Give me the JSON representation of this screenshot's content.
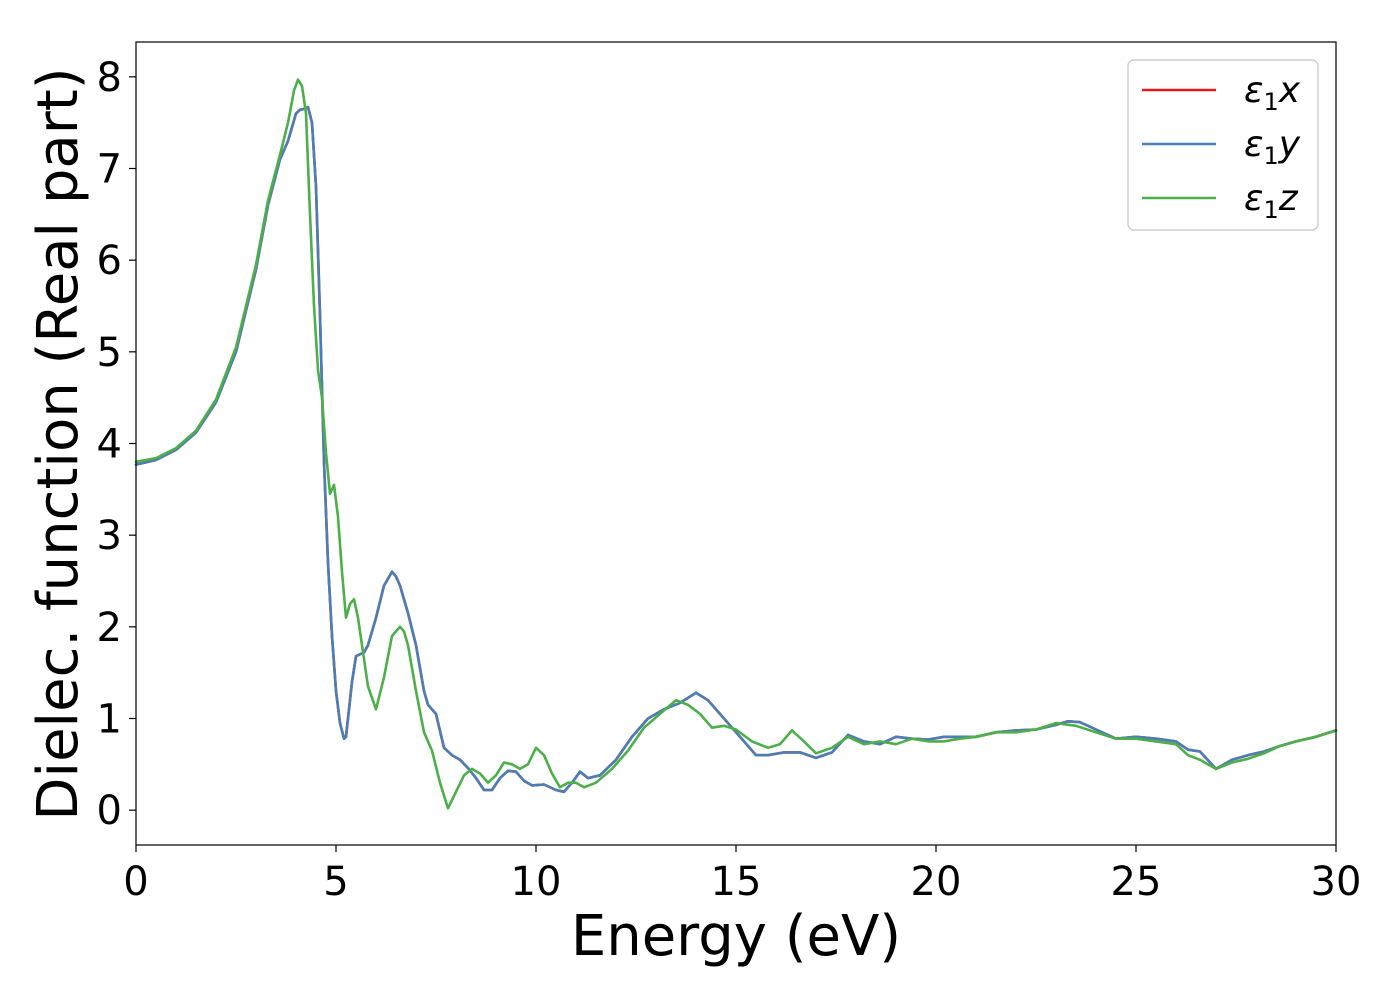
{
  "chart_data": {
    "type": "line",
    "title": "",
    "xlabel": "Energy (eV)",
    "ylabel": "Dielec. function (Real part)",
    "xlim": [
      0,
      30
    ],
    "ylim": [
      -0.38,
      8.38
    ],
    "xticks": [
      0,
      5,
      10,
      15,
      20,
      25,
      30
    ],
    "yticks": [
      0,
      1,
      2,
      3,
      4,
      5,
      6,
      7,
      8
    ],
    "xtick_labels": [
      "0",
      "5",
      "10",
      "15",
      "20",
      "25",
      "30"
    ],
    "ytick_labels": [
      "0",
      "1",
      "2",
      "3",
      "4",
      "5",
      "6",
      "7",
      "8"
    ],
    "grid": false,
    "legend_position": "top-right",
    "series": [
      {
        "name": "ε1x",
        "legend_main": "ε",
        "legend_sub": "1",
        "legend_var": "x",
        "color": "#e41a1c",
        "x": [
          0.0,
          0.5,
          1.0,
          1.5,
          2.0,
          2.5,
          3.0,
          3.3,
          3.6,
          3.8,
          4.0,
          4.1,
          4.2,
          4.3,
          4.4,
          4.5,
          4.6,
          4.7,
          4.8,
          4.9,
          5.0,
          5.1,
          5.2,
          5.25,
          5.3,
          5.4,
          5.5,
          5.6,
          5.7,
          5.8,
          6.0,
          6.2,
          6.4,
          6.5,
          6.6,
          6.8,
          7.0,
          7.1,
          7.2,
          7.3,
          7.5,
          7.7,
          7.9,
          8.1,
          8.3,
          8.5,
          8.7,
          8.9,
          9.1,
          9.3,
          9.5,
          9.7,
          9.9,
          10.2,
          10.5,
          10.7,
          10.9,
          11.1,
          11.3,
          11.6,
          12.0,
          12.4,
          12.8,
          13.2,
          13.6,
          14.0,
          14.3,
          14.6,
          14.9,
          15.2,
          15.5,
          15.8,
          16.2,
          16.6,
          17.0,
          17.4,
          17.8,
          18.2,
          18.6,
          19.0,
          19.4,
          19.8,
          20.2,
          20.6,
          21.0,
          21.5,
          22.0,
          22.5,
          23.0,
          23.3,
          23.6,
          24.0,
          24.5,
          25.0,
          25.5,
          26.0,
          26.3,
          26.6,
          27.0,
          27.4,
          27.8,
          28.2,
          28.6,
          29.0,
          29.5,
          30.0
        ],
        "y": [
          3.77,
          3.82,
          3.93,
          4.12,
          4.45,
          5.0,
          5.9,
          6.6,
          7.1,
          7.3,
          7.6,
          7.64,
          7.65,
          7.67,
          7.5,
          6.8,
          5.4,
          3.8,
          2.7,
          1.9,
          1.3,
          0.95,
          0.78,
          0.8,
          1.0,
          1.4,
          1.68,
          1.7,
          1.72,
          1.8,
          2.1,
          2.45,
          2.6,
          2.55,
          2.45,
          2.15,
          1.8,
          1.55,
          1.3,
          1.15,
          1.05,
          0.68,
          0.6,
          0.55,
          0.46,
          0.35,
          0.22,
          0.22,
          0.35,
          0.43,
          0.42,
          0.32,
          0.27,
          0.28,
          0.22,
          0.2,
          0.3,
          0.42,
          0.35,
          0.38,
          0.55,
          0.8,
          1.0,
          1.1,
          1.17,
          1.28,
          1.2,
          1.05,
          0.9,
          0.75,
          0.6,
          0.6,
          0.63,
          0.63,
          0.57,
          0.63,
          0.82,
          0.75,
          0.72,
          0.8,
          0.78,
          0.77,
          0.8,
          0.8,
          0.8,
          0.85,
          0.87,
          0.88,
          0.93,
          0.97,
          0.96,
          0.88,
          0.78,
          0.8,
          0.78,
          0.75,
          0.66,
          0.64,
          0.45,
          0.55,
          0.6,
          0.64,
          0.7,
          0.75,
          0.8,
          0.87
        ]
      },
      {
        "name": "ε1y",
        "legend_main": "ε",
        "legend_sub": "1",
        "legend_var": "y",
        "color": "#4a7fb5",
        "x": [
          0.0,
          0.5,
          1.0,
          1.5,
          2.0,
          2.5,
          3.0,
          3.3,
          3.6,
          3.8,
          4.0,
          4.1,
          4.2,
          4.3,
          4.4,
          4.5,
          4.6,
          4.7,
          4.8,
          4.9,
          5.0,
          5.1,
          5.2,
          5.25,
          5.3,
          5.4,
          5.5,
          5.6,
          5.7,
          5.8,
          6.0,
          6.2,
          6.4,
          6.5,
          6.6,
          6.8,
          7.0,
          7.1,
          7.2,
          7.3,
          7.5,
          7.7,
          7.9,
          8.1,
          8.3,
          8.5,
          8.7,
          8.9,
          9.1,
          9.3,
          9.5,
          9.7,
          9.9,
          10.2,
          10.5,
          10.7,
          10.9,
          11.1,
          11.3,
          11.6,
          12.0,
          12.4,
          12.8,
          13.2,
          13.6,
          14.0,
          14.3,
          14.6,
          14.9,
          15.2,
          15.5,
          15.8,
          16.2,
          16.6,
          17.0,
          17.4,
          17.8,
          18.2,
          18.6,
          19.0,
          19.4,
          19.8,
          20.2,
          20.6,
          21.0,
          21.5,
          22.0,
          22.5,
          23.0,
          23.3,
          23.6,
          24.0,
          24.5,
          25.0,
          25.5,
          26.0,
          26.3,
          26.6,
          27.0,
          27.4,
          27.8,
          28.2,
          28.6,
          29.0,
          29.5,
          30.0
        ],
        "y": [
          3.77,
          3.82,
          3.93,
          4.12,
          4.45,
          5.0,
          5.9,
          6.6,
          7.1,
          7.3,
          7.6,
          7.64,
          7.65,
          7.67,
          7.5,
          6.8,
          5.4,
          3.8,
          2.7,
          1.9,
          1.3,
          0.95,
          0.78,
          0.8,
          1.0,
          1.4,
          1.68,
          1.7,
          1.72,
          1.8,
          2.1,
          2.45,
          2.6,
          2.55,
          2.45,
          2.15,
          1.8,
          1.55,
          1.3,
          1.15,
          1.05,
          0.68,
          0.6,
          0.55,
          0.46,
          0.35,
          0.22,
          0.22,
          0.35,
          0.43,
          0.42,
          0.32,
          0.27,
          0.28,
          0.22,
          0.2,
          0.3,
          0.42,
          0.35,
          0.38,
          0.55,
          0.8,
          1.0,
          1.1,
          1.17,
          1.28,
          1.2,
          1.05,
          0.9,
          0.75,
          0.6,
          0.6,
          0.63,
          0.63,
          0.57,
          0.63,
          0.82,
          0.75,
          0.72,
          0.8,
          0.78,
          0.77,
          0.8,
          0.8,
          0.8,
          0.85,
          0.87,
          0.88,
          0.93,
          0.97,
          0.96,
          0.88,
          0.78,
          0.8,
          0.78,
          0.75,
          0.66,
          0.64,
          0.45,
          0.55,
          0.6,
          0.64,
          0.7,
          0.75,
          0.8,
          0.87
        ]
      },
      {
        "name": "ε1z",
        "legend_main": "ε",
        "legend_sub": "1",
        "legend_var": "z",
        "color": "#4daf4a",
        "x": [
          0.0,
          0.5,
          1.0,
          1.5,
          2.0,
          2.5,
          3.0,
          3.3,
          3.6,
          3.8,
          3.95,
          4.05,
          4.15,
          4.25,
          4.35,
          4.45,
          4.55,
          4.65,
          4.75,
          4.85,
          4.95,
          5.05,
          5.15,
          5.25,
          5.35,
          5.45,
          5.55,
          5.65,
          5.8,
          6.0,
          6.2,
          6.4,
          6.6,
          6.7,
          6.8,
          7.0,
          7.2,
          7.4,
          7.6,
          7.8,
          8.0,
          8.2,
          8.4,
          8.6,
          8.8,
          9.0,
          9.2,
          9.4,
          9.6,
          9.8,
          10.0,
          10.2,
          10.4,
          10.6,
          10.8,
          11.0,
          11.2,
          11.5,
          11.9,
          12.3,
          12.7,
          13.1,
          13.5,
          13.8,
          14.1,
          14.4,
          14.7,
          15.0,
          15.4,
          15.8,
          16.1,
          16.4,
          16.7,
          17.0,
          17.4,
          17.8,
          18.2,
          18.6,
          19.0,
          19.4,
          19.8,
          20.2,
          20.6,
          21.0,
          21.5,
          22.0,
          22.5,
          23.0,
          23.5,
          24.0,
          24.5,
          25.0,
          25.5,
          26.0,
          26.3,
          26.6,
          27.0,
          27.4,
          27.8,
          28.2,
          28.6,
          29.0,
          29.5,
          30.0
        ],
        "y": [
          3.8,
          3.84,
          3.95,
          4.14,
          4.48,
          5.05,
          5.95,
          6.65,
          7.15,
          7.5,
          7.85,
          7.97,
          7.9,
          7.6,
          6.5,
          5.5,
          4.8,
          4.5,
          3.9,
          3.45,
          3.55,
          3.2,
          2.6,
          2.1,
          2.25,
          2.3,
          2.1,
          1.8,
          1.35,
          1.1,
          1.45,
          1.9,
          2.0,
          1.95,
          1.8,
          1.3,
          0.85,
          0.65,
          0.3,
          0.02,
          0.2,
          0.38,
          0.45,
          0.4,
          0.3,
          0.38,
          0.52,
          0.5,
          0.45,
          0.5,
          0.68,
          0.6,
          0.4,
          0.25,
          0.3,
          0.3,
          0.25,
          0.3,
          0.45,
          0.65,
          0.9,
          1.05,
          1.2,
          1.15,
          1.05,
          0.9,
          0.92,
          0.88,
          0.75,
          0.68,
          0.72,
          0.87,
          0.75,
          0.62,
          0.68,
          0.8,
          0.72,
          0.75,
          0.72,
          0.78,
          0.75,
          0.75,
          0.78,
          0.8,
          0.85,
          0.85,
          0.88,
          0.95,
          0.92,
          0.85,
          0.78,
          0.78,
          0.75,
          0.72,
          0.6,
          0.55,
          0.45,
          0.52,
          0.56,
          0.62,
          0.7,
          0.75,
          0.8,
          0.87
        ]
      }
    ]
  }
}
